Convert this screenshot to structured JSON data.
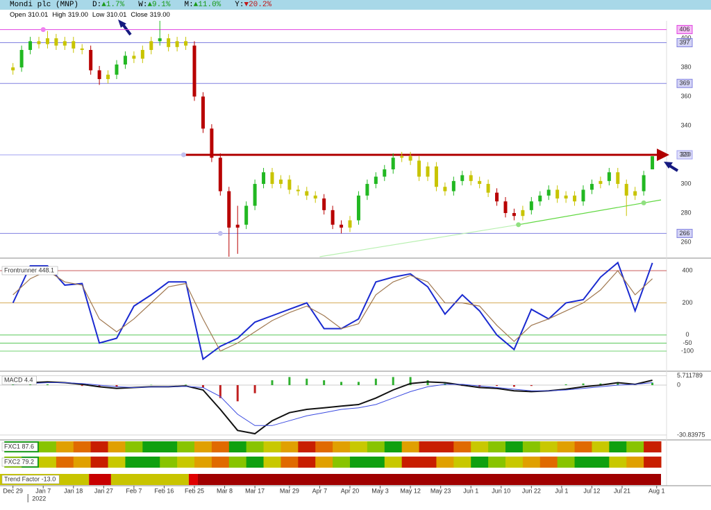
{
  "header": {
    "title": "Mondi plc (MNP)",
    "stats": [
      {
        "label": "D:",
        "value": "▲1.7%",
        "color": "#1a9a1a"
      },
      {
        "label": "W:",
        "value": "▲9.1%",
        "color": "#1a9a1a"
      },
      {
        "label": "M:",
        "value": "▲11.0%",
        "color": "#1a9a1a"
      },
      {
        "label": "Y:",
        "value": "▼20.2%",
        "color": "#c01818"
      }
    ],
    "ohlc": [
      {
        "label": "Open",
        "value": "310.01"
      },
      {
        "label": "High",
        "value": "319.00"
      },
      {
        "label": "Low",
        "value": "310.01"
      },
      {
        "label": "Close",
        "value": "319.00"
      }
    ]
  },
  "chart_data": [
    {
      "type": "candlestick",
      "xlim": [
        -3,
        150
      ],
      "xticks": [
        {
          "value": 0,
          "label": "Dec 29"
        },
        {
          "value": 7,
          "label": "Jan 7"
        },
        {
          "value": 14,
          "label": "Jan 18"
        },
        {
          "value": 21,
          "label": "Jan 27"
        },
        {
          "value": 28,
          "label": "Feb 7"
        },
        {
          "value": 35,
          "label": "Feb 16"
        },
        {
          "value": 42,
          "label": "Feb 25"
        },
        {
          "value": 49,
          "label": "Mar 8"
        },
        {
          "value": 56,
          "label": "Mar 17"
        },
        {
          "value": 64,
          "label": "Mar 29"
        },
        {
          "value": 71,
          "label": "Apr 7"
        },
        {
          "value": 78,
          "label": "Apr 20"
        },
        {
          "value": 85,
          "label": "May 3"
        },
        {
          "value": 92,
          "label": "May 12"
        },
        {
          "value": 99,
          "label": "May 23"
        },
        {
          "value": 106,
          "label": "Jun 1"
        },
        {
          "value": 113,
          "label": "Jun 10"
        },
        {
          "value": 120,
          "label": "Jun 22"
        },
        {
          "value": 127,
          "label": "Jul 1"
        },
        {
          "value": 134,
          "label": "Jul 12"
        },
        {
          "value": 141,
          "label": "Jul 21"
        },
        {
          "value": 149,
          "label": "Aug 1"
        }
      ],
      "year_label": "2022",
      "ylim": [
        250,
        412
      ],
      "yticks": [
        260,
        280,
        300,
        320,
        340,
        360,
        380,
        400
      ],
      "x": [
        0,
        2,
        4,
        6,
        8,
        10,
        12,
        14,
        16,
        18,
        20,
        22,
        24,
        26,
        28,
        30,
        32,
        34,
        36,
        38,
        40,
        42,
        44,
        46,
        48,
        50,
        52,
        54,
        56,
        58,
        60,
        62,
        64,
        66,
        68,
        70,
        72,
        74,
        76,
        78,
        80,
        82,
        84,
        86,
        88,
        90,
        92,
        94,
        96,
        98,
        100,
        102,
        104,
        106,
        108,
        110,
        112,
        114,
        116,
        118,
        120,
        122,
        124,
        126,
        128,
        130,
        132,
        134,
        136,
        138,
        140,
        142,
        144,
        146,
        148
      ],
      "open": [
        378,
        380,
        392,
        398,
        396,
        400,
        395,
        398,
        393,
        392,
        378,
        372,
        375,
        382,
        388,
        386,
        392,
        398,
        400,
        394,
        398,
        395,
        360,
        338,
        318,
        295,
        270,
        272,
        285,
        300,
        308,
        300,
        303,
        296,
        295,
        292,
        290,
        282,
        272,
        270,
        275,
        292,
        300,
        305,
        310,
        318,
        319,
        316,
        305,
        312,
        298,
        295,
        302,
        306,
        302,
        300,
        294,
        288,
        280,
        278,
        282,
        288,
        292,
        296,
        290,
        292,
        288,
        296,
        300,
        302,
        308,
        300,
        292,
        295,
        310.01
      ],
      "high": [
        383,
        395,
        401,
        401,
        405,
        403,
        401,
        401,
        396,
        395,
        381,
        378,
        385,
        391,
        391,
        395,
        401,
        412,
        403,
        401,
        401,
        398,
        363,
        341,
        321,
        298,
        285,
        288,
        303,
        311,
        311,
        306,
        306,
        299,
        298,
        295,
        293,
        285,
        275,
        278,
        295,
        303,
        308,
        313,
        321,
        322,
        322,
        319,
        315,
        315,
        301,
        305,
        309,
        309,
        305,
        303,
        297,
        291,
        283,
        285,
        291,
        295,
        299,
        299,
        295,
        295,
        299,
        303,
        305,
        311,
        311,
        303,
        298,
        309,
        319
      ],
      "low": [
        375,
        377,
        389,
        393,
        393,
        392,
        392,
        390,
        389,
        375,
        368,
        369,
        372,
        379,
        383,
        383,
        389,
        395,
        391,
        391,
        392,
        357,
        335,
        315,
        292,
        250,
        252,
        269,
        282,
        297,
        297,
        297,
        293,
        292,
        289,
        287,
        279,
        269,
        266,
        267,
        272,
        289,
        297,
        302,
        307,
        315,
        313,
        302,
        302,
        295,
        292,
        292,
        299,
        299,
        297,
        291,
        285,
        277,
        275,
        275,
        279,
        285,
        289,
        287,
        287,
        285,
        285,
        293,
        297,
        299,
        297,
        278,
        289,
        292,
        310.01
      ],
      "close": [
        380,
        392,
        398,
        396,
        400,
        395,
        398,
        393,
        392,
        378,
        372,
        375,
        382,
        388,
        386,
        392,
        398,
        400,
        394,
        398,
        395,
        360,
        338,
        318,
        295,
        270,
        272,
        285,
        300,
        308,
        300,
        303,
        296,
        295,
        292,
        290,
        282,
        272,
        270,
        275,
        292,
        300,
        305,
        310,
        318,
        319,
        316,
        305,
        312,
        298,
        295,
        302,
        306,
        302,
        300,
        294,
        288,
        280,
        278,
        282,
        288,
        292,
        296,
        290,
        292,
        288,
        296,
        300,
        302,
        308,
        300,
        292,
        295,
        306,
        319
      ],
      "colors": [
        "#c8c400",
        "#22b822",
        "#22b822",
        "#c8c400",
        "#c8c400",
        "#c8c400",
        "#c8c400",
        "#c8c400",
        "#c8c400",
        "#b80000",
        "#b80000",
        "#c8c400",
        "#22b822",
        "#22b822",
        "#c8c400",
        "#c8c400",
        "#c8c400",
        "#22b822",
        "#c8c400",
        "#c8c400",
        "#c8c400",
        "#b80000",
        "#b80000",
        "#b80000",
        "#b80000",
        "#b80000",
        "#b80000",
        "#22b822",
        "#22b822",
        "#22b822",
        "#c8c400",
        "#c8c400",
        "#c8c400",
        "#c8c400",
        "#c8c400",
        "#c8c400",
        "#b80000",
        "#b80000",
        "#b80000",
        "#c8c400",
        "#22b822",
        "#22b822",
        "#22b822",
        "#22b822",
        "#22b822",
        "#c8c400",
        "#c8c400",
        "#c8c400",
        "#c8c400",
        "#c8c400",
        "#c8c400",
        "#22b822",
        "#22b822",
        "#c8c400",
        "#c8c400",
        "#c8c400",
        "#b80000",
        "#b80000",
        "#b80000",
        "#c8c400",
        "#22b822",
        "#22b822",
        "#22b822",
        "#c8c400",
        "#c8c400",
        "#c8c400",
        "#22b822",
        "#22b822",
        "#c8c400",
        "#22b822",
        "#c8c400",
        "#c8c400",
        "#c8c400",
        "#22b822",
        "#22b822"
      ],
      "levels": [
        {
          "value": 406,
          "color": "#e040e0"
        },
        {
          "value": 397,
          "color": "#8080e0"
        },
        {
          "value": 369,
          "color": "#8080e0"
        },
        {
          "value": 320,
          "color": "#a0a0f0"
        },
        {
          "value": 266,
          "color": "#8080e0"
        }
      ],
      "resistance": {
        "x": [
          39.5,
          150
        ],
        "y": [
          320,
          320
        ],
        "color": "#b00000"
      },
      "trendlines": [
        {
          "x": [
            117,
            150
          ],
          "y": [
            272,
            289
          ],
          "color": "#60d840"
        },
        {
          "x": [
            71,
            117
          ],
          "y": [
            250,
            272
          ],
          "color": "#b8f0b0"
        }
      ],
      "pivots": [
        {
          "x": 7,
          "y": 406,
          "color": "#f080f0"
        },
        {
          "x": 39.5,
          "y": 320,
          "color": "#c0c0f0"
        },
        {
          "x": 48,
          "y": 266,
          "color": "#c0c0f0"
        },
        {
          "x": 117,
          "y": 272,
          "color": "#90e080"
        },
        {
          "x": 146,
          "y": 287,
          "color": "#90e080"
        }
      ]
    },
    {
      "type": "line",
      "title": "Frontrunner 448.1",
      "ylim": [
        -212,
        465
      ],
      "yticks": [
        400,
        200,
        0,
        -50,
        -100
      ],
      "level_colors": [
        "#c04040",
        "#d0a040",
        "#40c040",
        "#40c040",
        "#40c040"
      ],
      "x": [
        0,
        4,
        8,
        12,
        16,
        20,
        24,
        28,
        32,
        36,
        40,
        44,
        48,
        52,
        56,
        60,
        64,
        68,
        72,
        76,
        80,
        84,
        88,
        92,
        96,
        100,
        104,
        108,
        112,
        116,
        120,
        124,
        128,
        132,
        136,
        140,
        144,
        148
      ],
      "series": [
        {
          "color": "#1a2ad0",
          "values": [
            200,
            430,
            430,
            310,
            320,
            -50,
            -20,
            180,
            250,
            330,
            330,
            -150,
            -70,
            -20,
            80,
            120,
            160,
            200,
            40,
            40,
            100,
            330,
            360,
            380,
            300,
            130,
            250,
            150,
            0,
            -90,
            160,
            100,
            200,
            220,
            360,
            450,
            150,
            448.1
          ]
        },
        {
          "color": "#a07850",
          "values": [
            250,
            350,
            400,
            330,
            310,
            100,
            20,
            100,
            200,
            300,
            320,
            100,
            -100,
            -50,
            20,
            90,
            140,
            180,
            120,
            40,
            70,
            250,
            330,
            370,
            330,
            200,
            200,
            180,
            60,
            -40,
            60,
            100,
            150,
            200,
            280,
            400,
            250,
            350
          ]
        }
      ]
    },
    {
      "type": "macd",
      "title": "MACD 4.4",
      "ylim": [
        -33,
        7.3
      ],
      "yticks": [
        5.711789,
        0,
        -30.83975
      ],
      "x": [
        0,
        4,
        8,
        12,
        16,
        20,
        24,
        28,
        32,
        36,
        40,
        44,
        48,
        52,
        56,
        60,
        64,
        68,
        72,
        76,
        80,
        84,
        88,
        92,
        96,
        100,
        104,
        108,
        112,
        116,
        120,
        124,
        128,
        132,
        136,
        140,
        144,
        148
      ],
      "histogram": {
        "up_color": "#30b030",
        "down_color": "#c02020",
        "values": [
          0.5,
          0.5,
          0.5,
          0,
          -0.5,
          -1,
          -1,
          0,
          0.2,
          0,
          0.3,
          -1.5,
          -8,
          -10,
          -5,
          3,
          5,
          4,
          3,
          2,
          2,
          4,
          5,
          5,
          3,
          1,
          -0.5,
          -1,
          -0.5,
          -1,
          -0.5,
          0,
          0.5,
          1,
          1,
          1.5,
          0,
          1.5
        ]
      },
      "series": [
        {
          "color": "#111111",
          "values": [
            1,
            1.5,
            2,
            1.5,
            0.5,
            -1,
            -2,
            -1.5,
            -1,
            -1,
            -0.5,
            -3,
            -15,
            -28,
            -30,
            -22,
            -17,
            -15,
            -14,
            -13,
            -12,
            -8,
            -3,
            1,
            2,
            1.5,
            0,
            -1.5,
            -2,
            -3.5,
            -4,
            -3.5,
            -2.5,
            -1,
            0,
            1.5,
            0.5,
            3
          ]
        },
        {
          "color": "#3a4ae0",
          "values": [
            0.5,
            1,
            1.5,
            1.5,
            1,
            0,
            -1,
            -1.5,
            -1.2,
            -1,
            -0.8,
            -1.5,
            -7,
            -18,
            -25,
            -25,
            -22,
            -19,
            -17,
            -15,
            -14,
            -12,
            -8,
            -4,
            -1,
            0.5,
            0.5,
            -0.5,
            -1.5,
            -2.5,
            -3.5,
            -3.5,
            -3,
            -2,
            -1,
            0,
            0.5,
            1.5
          ]
        }
      ]
    },
    {
      "type": "heatmap",
      "title": "FXC1 87.6",
      "x": [
        0,
        4,
        8,
        12,
        16,
        20,
        24,
        28,
        32,
        36,
        40,
        44,
        48,
        52,
        56,
        60,
        64,
        68,
        72,
        76,
        80,
        84,
        88,
        92,
        96,
        100,
        104,
        108,
        112,
        116,
        120,
        124,
        128,
        132,
        136,
        140,
        144,
        148
      ],
      "colors": [
        "#10a010",
        "#10a010",
        "#88c400",
        "#e0a000",
        "#e06a00",
        "#c81e00",
        "#e0a000",
        "#88c400",
        "#10a010",
        "#10a010",
        "#88c400",
        "#e0a000",
        "#e06a00",
        "#10a010",
        "#88c400",
        "#c8c800",
        "#e0a000",
        "#c81e00",
        "#e06a00",
        "#e0a000",
        "#c8c800",
        "#88c400",
        "#10a010",
        "#e0a000",
        "#c81e00",
        "#c81e00",
        "#e06a00",
        "#c8c800",
        "#88c400",
        "#10a010",
        "#88c400",
        "#c8c800",
        "#e0a000",
        "#e06a00",
        "#c8c800",
        "#10a010",
        "#88c400",
        "#c81e00"
      ]
    },
    {
      "type": "heatmap",
      "title": "FXC2 79.2",
      "x": [
        0,
        4,
        8,
        12,
        16,
        20,
        24,
        28,
        32,
        36,
        40,
        44,
        48,
        52,
        56,
        60,
        64,
        68,
        72,
        76,
        80,
        84,
        88,
        92,
        96,
        100,
        104,
        108,
        112,
        116,
        120,
        124,
        128,
        132,
        136,
        140,
        144,
        148
      ],
      "colors": [
        "#88c400",
        "#10a010",
        "#c8c800",
        "#e06a00",
        "#e0a000",
        "#c81e00",
        "#c8c800",
        "#10a010",
        "#10a010",
        "#88c400",
        "#c8c800",
        "#e0a000",
        "#e06a00",
        "#88c400",
        "#10a010",
        "#c8c800",
        "#e06a00",
        "#c81e00",
        "#e0a000",
        "#88c400",
        "#10a010",
        "#10a010",
        "#c8c800",
        "#c81e00",
        "#c81e00",
        "#e0a000",
        "#c8c800",
        "#10a010",
        "#88c400",
        "#c8c800",
        "#e0a000",
        "#e06a00",
        "#88c400",
        "#10a010",
        "#10a010",
        "#c8c800",
        "#e0a000",
        "#c81e00"
      ]
    },
    {
      "type": "segments",
      "title": "Trend Factor -13.0",
      "segments": [
        {
          "from": -3,
          "to": 17.6,
          "color": "#c8c400"
        },
        {
          "from": 17.6,
          "to": 22.7,
          "color": "#c80000"
        },
        {
          "from": 22.7,
          "to": 40.7,
          "color": "#c8c400"
        },
        {
          "from": 40.7,
          "to": 42.8,
          "color": "#e00000"
        },
        {
          "from": 42.8,
          "to": 150,
          "color": "#a00000"
        }
      ]
    }
  ]
}
